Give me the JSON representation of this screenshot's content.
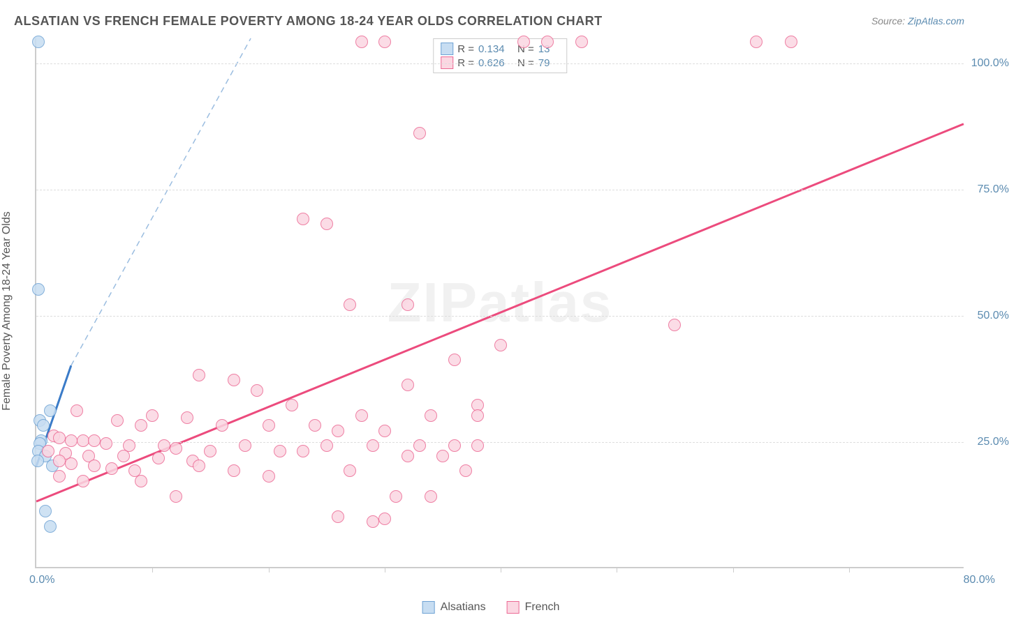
{
  "title": "ALSATIAN VS FRENCH FEMALE POVERTY AMONG 18-24 YEAR OLDS CORRELATION CHART",
  "source_prefix": "Source: ",
  "source_link": "ZipAtlas.com",
  "y_axis_label": "Female Poverty Among 18-24 Year Olds",
  "watermark": "ZIPatlas",
  "chart": {
    "type": "scatter",
    "xlim": [
      0,
      80
    ],
    "ylim": [
      0,
      105
    ],
    "x_origin_label": "0.0%",
    "x_max_label": "80.0%",
    "x_tick_step": 10,
    "y_gridlines": [
      25,
      50,
      75,
      100
    ],
    "y_tick_labels": [
      "25.0%",
      "50.0%",
      "75.0%",
      "100.0%"
    ],
    "background_color": "#ffffff",
    "grid_color": "#dddddd",
    "axis_color": "#cccccc",
    "tick_label_color": "#5b8bb0",
    "label_fontsize": 16,
    "title_fontsize": 18,
    "marker_radius": 9,
    "marker_stroke_width": 1.5,
    "series": [
      {
        "name": "Alsatians",
        "fill_color": "#c7ddf2",
        "stroke_color": "#6fa3d4",
        "line_color": "#3a7bc8",
        "line_dash_color": "#9bbde0",
        "trend_solid": {
          "x1": 0,
          "y1": 20,
          "x2": 3,
          "y2": 40
        },
        "trend_dash": {
          "x1": 3,
          "y1": 40,
          "x2": 18.5,
          "y2": 105
        },
        "R": "0.134",
        "N": "13",
        "points": [
          [
            0.2,
            104
          ],
          [
            0.2,
            55
          ],
          [
            1.2,
            31
          ],
          [
            0.3,
            29
          ],
          [
            0.6,
            28
          ],
          [
            0.4,
            25
          ],
          [
            0.3,
            24.5
          ],
          [
            0.2,
            23
          ],
          [
            0.8,
            22
          ],
          [
            0.1,
            21
          ],
          [
            1.4,
            20
          ],
          [
            0.8,
            11
          ],
          [
            1.2,
            8
          ]
        ]
      },
      {
        "name": "French",
        "fill_color": "#fbd7e2",
        "stroke_color": "#ec6994",
        "line_color": "#ec4b7d",
        "trend_solid": {
          "x1": 0,
          "y1": 13,
          "x2": 80,
          "y2": 88
        },
        "R": "0.626",
        "N": "79",
        "points": [
          [
            28,
            104
          ],
          [
            30,
            104
          ],
          [
            42,
            104
          ],
          [
            44,
            104
          ],
          [
            47,
            104
          ],
          [
            62,
            104
          ],
          [
            65,
            104
          ],
          [
            33,
            86
          ],
          [
            23,
            69
          ],
          [
            25,
            68
          ],
          [
            27,
            52
          ],
          [
            32,
            52
          ],
          [
            55,
            48
          ],
          [
            40,
            44
          ],
          [
            36,
            41
          ],
          [
            14,
            38
          ],
          [
            17,
            37
          ],
          [
            32,
            36
          ],
          [
            19,
            35
          ],
          [
            22,
            32
          ],
          [
            38,
            32
          ],
          [
            3.5,
            31
          ],
          [
            10,
            30
          ],
          [
            13,
            29.5
          ],
          [
            28,
            30
          ],
          [
            34,
            30
          ],
          [
            38,
            30
          ],
          [
            7,
            29
          ],
          [
            9,
            28
          ],
          [
            16,
            28
          ],
          [
            20,
            28
          ],
          [
            24,
            28
          ],
          [
            26,
            27
          ],
          [
            30,
            27
          ],
          [
            1.5,
            26
          ],
          [
            2,
            25.5
          ],
          [
            3,
            25
          ],
          [
            4,
            25
          ],
          [
            5,
            25
          ],
          [
            6,
            24.5
          ],
          [
            8,
            24
          ],
          [
            11,
            24
          ],
          [
            12,
            23.5
          ],
          [
            15,
            23
          ],
          [
            18,
            24
          ],
          [
            21,
            23
          ],
          [
            23,
            23
          ],
          [
            25,
            24
          ],
          [
            29,
            24
          ],
          [
            33,
            24
          ],
          [
            36,
            24
          ],
          [
            38,
            24
          ],
          [
            1,
            23
          ],
          [
            2.5,
            22.5
          ],
          [
            4.5,
            22
          ],
          [
            7.5,
            22
          ],
          [
            10.5,
            21.5
          ],
          [
            13.5,
            21
          ],
          [
            2,
            21
          ],
          [
            3,
            20.5
          ],
          [
            5,
            20
          ],
          [
            6.5,
            19.5
          ],
          [
            8.5,
            19
          ],
          [
            14,
            20
          ],
          [
            17,
            19
          ],
          [
            2,
            18
          ],
          [
            4,
            17
          ],
          [
            12,
            14
          ],
          [
            20,
            18
          ],
          [
            27,
            19
          ],
          [
            31,
            14
          ],
          [
            32,
            22
          ],
          [
            35,
            22
          ],
          [
            37,
            19
          ],
          [
            26,
            10
          ],
          [
            29,
            9
          ],
          [
            30,
            9.5
          ],
          [
            34,
            14
          ],
          [
            9,
            17
          ]
        ]
      }
    ]
  },
  "stats_legend": {
    "r_label": "R =",
    "n_label": "N ="
  },
  "bottom_legend": {
    "items": [
      "Alsatians",
      "French"
    ]
  }
}
